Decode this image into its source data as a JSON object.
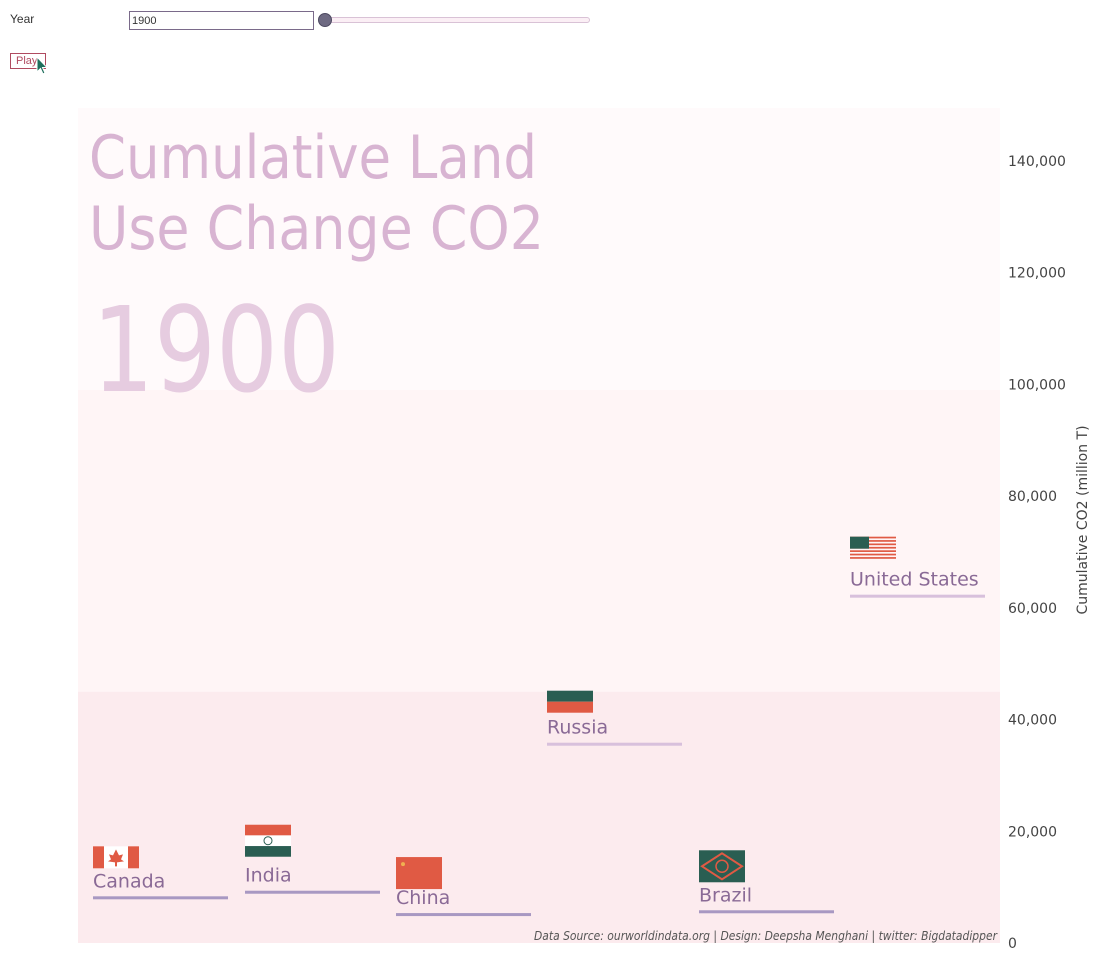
{
  "controls": {
    "year_label": "Year",
    "year_value": "1900",
    "play_label": "Play",
    "slider": {
      "min": 1900,
      "max": 2017,
      "value": 1900
    }
  },
  "chart_data": {
    "type": "scatter",
    "title_lines": [
      "Cumulative Land",
      "Use Change CO2"
    ],
    "year": "1900",
    "ylabel": "Cumulative CO2 (million T)",
    "ylim": [
      0,
      150000
    ],
    "yticks": [
      0,
      20000,
      40000,
      60000,
      80000,
      100000,
      120000,
      140000
    ],
    "ytick_labels": [
      "0",
      "20,000",
      "40,000",
      "60,000",
      "80,000",
      "100,000",
      "120,000",
      "140,000"
    ],
    "bands": [
      {
        "from": 0,
        "to": 45000,
        "color": "#fcebee"
      },
      {
        "from": 45000,
        "to": 99000,
        "color": "#fff5f6"
      },
      {
        "from": 99000,
        "to": 150000,
        "color": "#fffafb"
      }
    ],
    "points": [
      {
        "name": "Canada",
        "value": 8000,
        "flag": "canada-flag"
      },
      {
        "name": "India",
        "value": 9000,
        "flag": "india-flag"
      },
      {
        "name": "China",
        "value": 5000,
        "flag": "china-flag"
      },
      {
        "name": "Russia",
        "value": 35500,
        "flag": "russia-flag"
      },
      {
        "name": "Brazil",
        "value": 5500,
        "flag": "brazil-flag"
      },
      {
        "name": "United States",
        "value": 62000,
        "flag": "usa-flag"
      }
    ],
    "source": "Data Source: ourworldindata.org | Design: Deepsha Menghani | twitter: Bigdatadipper",
    "colors": {
      "title": "#d8b4d2",
      "year": "#e6cce0",
      "label": "#8a6a96",
      "underline": "#d8c0dc",
      "underline_dark": "#a898c2",
      "axis_text": "#444444"
    }
  }
}
